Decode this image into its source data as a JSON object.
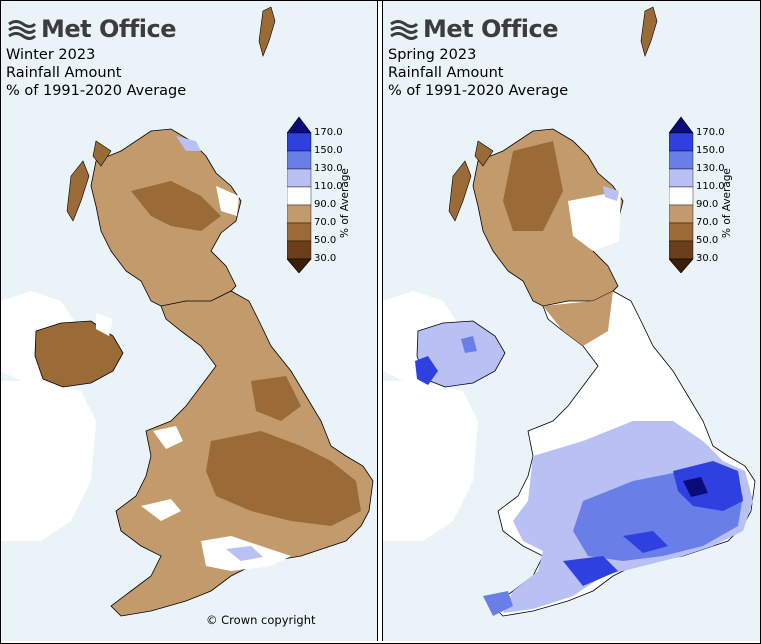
{
  "brand": {
    "name": "Met Office"
  },
  "legend": {
    "axis_label": "% of Average",
    "ticks": [
      "170.0",
      "150.0",
      "130.0",
      "110.0",
      "90.0",
      "70.0",
      "50.0",
      "30.0"
    ],
    "bands": [
      {
        "range": "above 170",
        "color": "#0b0b7a"
      },
      {
        "range": "150-170",
        "color": "#2e40e0"
      },
      {
        "range": "130-150",
        "color": "#6a7ee8"
      },
      {
        "range": "110-130",
        "color": "#b9c0f3"
      },
      {
        "range": "90-110",
        "color": "#ffffff"
      },
      {
        "range": "70-90",
        "color": "#c39a6b"
      },
      {
        "range": "50-70",
        "color": "#9a6a37"
      },
      {
        "range": "30-50",
        "color": "#6b3e1a"
      },
      {
        "range": "below 30",
        "color": "#3b1f0a"
      }
    ]
  },
  "panels": [
    {
      "title_lines": [
        "Winter 2023",
        "Rainfall Amount",
        "% of 1991-2020 Average"
      ],
      "dominant_category": "70-90",
      "credit": "© Crown copyright"
    },
    {
      "title_lines": [
        "Spring 2023",
        "Rainfall Amount",
        "% of 1991-2020 Average"
      ],
      "dominant_category": "110-150",
      "credit": ""
    }
  ]
}
